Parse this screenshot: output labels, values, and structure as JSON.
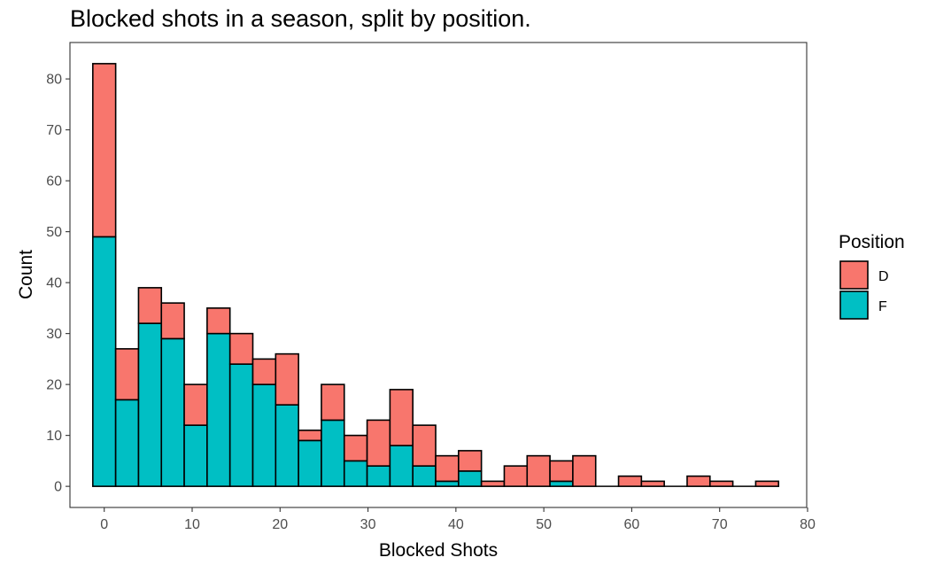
{
  "chart_data": {
    "type": "bar",
    "title": "Blocked shots in a season, split by position.",
    "xlabel": "Blocked Shots",
    "ylabel": "Count",
    "xlim": [
      -3.9,
      79.9
    ],
    "ylim": [
      -4.15,
      87.15
    ],
    "xticks": [
      "0",
      "10",
      "20",
      "30",
      "40",
      "50",
      "60",
      "70",
      "80"
    ],
    "yticks": [
      "0",
      "10",
      "20",
      "30",
      "40",
      "50",
      "60",
      "70",
      "80"
    ],
    "bin_width": 2.6,
    "bin_centers": [
      0,
      2.6,
      5.2,
      7.8,
      10.4,
      13,
      15.6,
      18.2,
      20.8,
      23.4,
      26,
      28.6,
      31.2,
      33.8,
      36.4,
      39,
      41.6,
      44.2,
      46.8,
      49.4,
      52,
      54.6,
      57.2,
      59.8,
      62.4,
      65,
      67.6,
      70.2,
      72.8,
      75.4
    ],
    "stacked": true,
    "grid": false,
    "legend_position": "right",
    "legend_title": "Position",
    "series": [
      {
        "name": "D",
        "color": "#F8766D",
        "values": [
          34,
          10,
          7,
          7,
          8,
          5,
          6,
          5,
          10,
          2,
          7,
          5,
          9,
          11,
          8,
          5,
          4,
          1,
          4,
          6,
          4,
          6,
          0,
          2,
          1,
          0,
          2,
          1,
          0,
          1
        ]
      },
      {
        "name": "F",
        "color": "#00BFC4",
        "values": [
          49,
          17,
          32,
          29,
          12,
          30,
          24,
          20,
          16,
          9,
          13,
          5,
          4,
          8,
          4,
          1,
          3,
          0,
          0,
          0,
          1,
          0,
          0,
          0,
          0,
          0,
          0,
          0,
          0,
          0
        ]
      }
    ]
  }
}
